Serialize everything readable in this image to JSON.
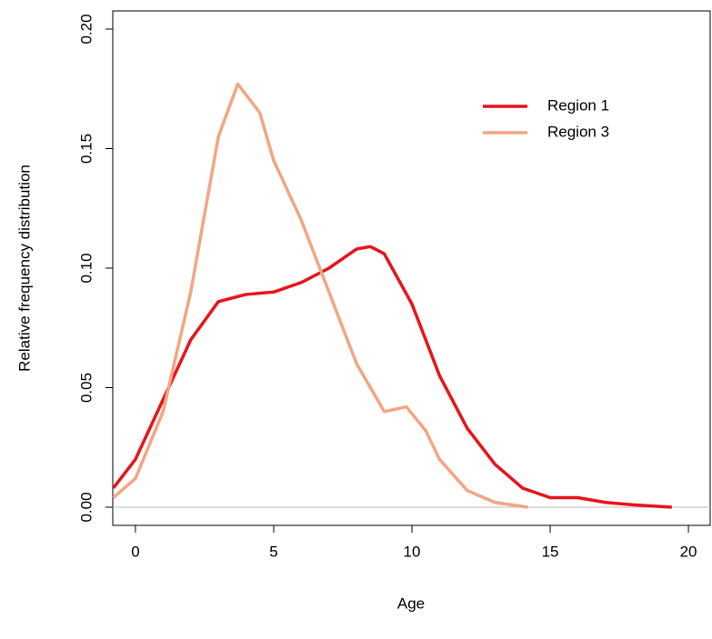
{
  "chart_data": {
    "type": "line",
    "xlabel": "Age",
    "ylabel": "Relative frequency distribution",
    "xlim": [
      -0.82,
      20.82
    ],
    "ylim": [
      -0.0076,
      0.2076
    ],
    "xticks": [
      0,
      5,
      10,
      15,
      20
    ],
    "yticks": [
      {
        "value": 0,
        "label": "0.00"
      },
      {
        "value": 0.05,
        "label": "0.05"
      },
      {
        "value": 0.1,
        "label": "0.10"
      },
      {
        "value": 0.15,
        "label": "0.15"
      },
      {
        "value": 0.2,
        "label": "0.20"
      }
    ],
    "legend": "top-right",
    "series": [
      {
        "name": "Region 1",
        "color": "#e8141a",
        "x": [
          -0.8,
          0,
          1,
          2,
          3,
          4,
          5,
          6,
          7,
          8,
          8.5,
          9,
          10,
          10.5,
          11,
          12,
          13,
          14,
          15,
          16,
          17,
          18,
          19.4
        ],
        "values": [
          0.008,
          0.02,
          0.045,
          0.07,
          0.086,
          0.089,
          0.09,
          0.094,
          0.1,
          0.108,
          0.109,
          0.106,
          0.085,
          0.07,
          0.055,
          0.033,
          0.018,
          0.008,
          0.004,
          0.004,
          0.002,
          0.001,
          0.0
        ]
      },
      {
        "name": "Region 3",
        "color": "#f4a582",
        "x": [
          -0.8,
          0,
          1,
          2,
          3,
          3.7,
          4.5,
          5,
          6,
          7,
          8,
          9,
          9.8,
          10.5,
          11,
          12,
          13,
          14.2
        ],
        "values": [
          0.004,
          0.012,
          0.04,
          0.09,
          0.155,
          0.177,
          0.165,
          0.145,
          0.12,
          0.09,
          0.06,
          0.04,
          0.042,
          0.032,
          0.02,
          0.007,
          0.002,
          0.0
        ]
      }
    ]
  }
}
